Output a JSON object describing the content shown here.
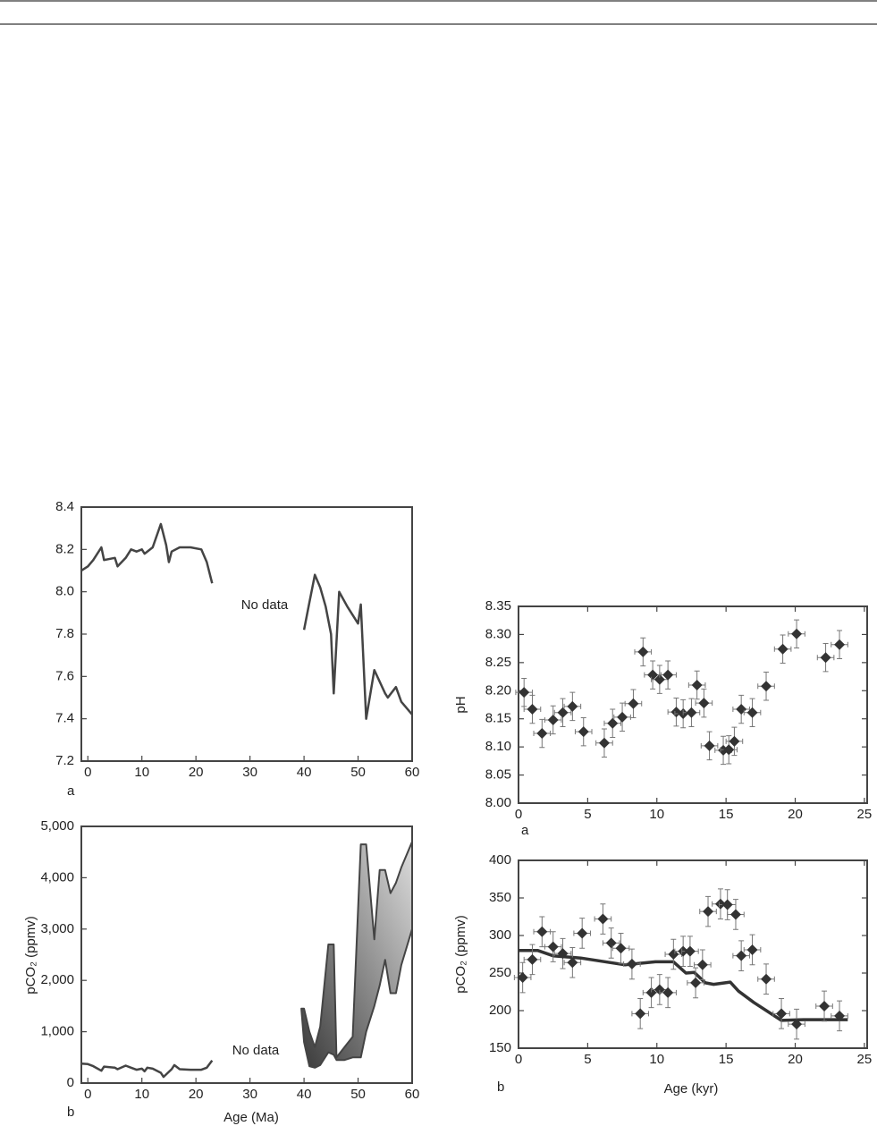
{
  "chart_data": [
    {
      "type": "line",
      "color": "#444444",
      "ylim": [
        7.2,
        8.4
      ],
      "yticks": [
        7.2,
        7.4,
        7.6,
        7.8,
        {
          "value": 8,
          "label": "8.0"
        },
        8.2,
        8.4
      ],
      "xlim": [
        -1.2,
        60
      ],
      "xticks": [
        0,
        10,
        20,
        30,
        40,
        50,
        60
      ],
      "annotation": "No data",
      "panel_label": "a",
      "series": [
        {
          "x": [
            -1.2,
            0,
            1,
            2.5,
            3,
            5,
            5.5,
            7,
            8,
            9,
            10,
            10.5,
            11,
            12,
            13.5,
            14.5,
            15,
            15.5,
            17,
            19,
            21,
            22,
            23,
            31,
            40,
            41,
            42,
            43,
            44,
            45,
            45.5,
            46.5,
            48,
            50,
            50.5,
            51.5,
            53,
            55,
            55.5,
            57,
            58,
            60
          ],
          "values": [
            8.1,
            8.12,
            8.15,
            8.21,
            8.15,
            8.16,
            8.12,
            8.16,
            8.2,
            8.19,
            8.2,
            8.18,
            8.19,
            8.21,
            8.32,
            8.22,
            8.14,
            8.19,
            8.21,
            8.21,
            8.2,
            8.14,
            8.04,
            null,
            7.82,
            7.95,
            8.08,
            8.02,
            7.93,
            7.8,
            7.52,
            8.0,
            7.93,
            7.85,
            7.94,
            7.4,
            7.63,
            7.52,
            7.5,
            7.55,
            7.48,
            7.42
          ]
        }
      ]
    },
    {
      "type": "line",
      "color": "#444444",
      "ylim": [
        0,
        5000
      ],
      "yticks": [
        0,
        {
          "value": 1000,
          "label": "1,000"
        },
        {
          "value": 2000,
          "label": "2,000"
        },
        {
          "value": 3000,
          "label": "3,000"
        },
        {
          "value": 4000,
          "label": "4,000"
        },
        {
          "value": 5000,
          "label": "5,000"
        }
      ],
      "xlim": [
        -1.2,
        60
      ],
      "xticks": [
        0,
        10,
        20,
        30,
        40,
        50,
        60
      ],
      "xlabel": "Age (Ma)",
      "ylabel": "pCO₂ (ppmv)",
      "annotation": "No data",
      "panel_label": "b",
      "series": [
        {
          "x": [
            -1.2,
            0,
            1,
            2.5,
            3,
            5,
            5.5,
            7,
            8,
            9,
            10,
            10.5,
            11,
            12,
            13.5,
            14,
            15.5,
            16,
            17,
            19,
            21,
            22,
            23
          ],
          "values": [
            380,
            370,
            330,
            240,
            320,
            300,
            270,
            340,
            300,
            260,
            280,
            230,
            300,
            280,
            200,
            120,
            270,
            350,
            270,
            260,
            260,
            300,
            440
          ]
        }
      ],
      "bands": [
        {
          "x": [
            39.5,
            40,
            41,
            42,
            43,
            44.5,
            45.5,
            46,
            47.5,
            49,
            50.5,
            51.5,
            53,
            54,
            55,
            56,
            57,
            58,
            60
          ],
          "upper": [
            1450,
            1450,
            1000,
            700,
            1100,
            2700,
            2700,
            500,
            700,
            900,
            4650,
            4650,
            2800,
            4150,
            4150,
            3700,
            3900,
            4200,
            4700
          ],
          "lower": [
            1450,
            800,
            330,
            300,
            350,
            600,
            550,
            450,
            450,
            500,
            500,
            1000,
            1500,
            1900,
            2400,
            1750,
            1750,
            2300,
            3000
          ]
        }
      ]
    },
    {
      "type": "scatter",
      "color": "#333333",
      "ylim": [
        8.0,
        8.35
      ],
      "yticks": [
        {
          "value": 8,
          "label": "8.00"
        },
        8.05,
        {
          "value": 8.1,
          "label": "8.10"
        },
        8.15,
        {
          "value": 8.2,
          "label": "8.20"
        },
        8.25,
        {
          "value": 8.3,
          "label": "8.30"
        },
        8.35
      ],
      "xlim": [
        0,
        25.2
      ],
      "xticks": [
        0,
        5,
        10,
        15,
        20,
        25
      ],
      "ylabel": "pH",
      "panel_label": "a",
      "xerr": 0.6,
      "yerr": 0.025,
      "x": [
        0.4,
        1.0,
        1.7,
        2.5,
        3.2,
        3.9,
        4.7,
        6.2,
        6.8,
        7.5,
        8.3,
        9.0,
        9.7,
        10.2,
        10.8,
        11.4,
        11.9,
        12.5,
        12.9,
        13.4,
        13.8,
        14.8,
        15.2,
        15.6,
        16.1,
        16.9,
        17.9,
        19.1,
        20.1,
        22.2,
        23.2
      ],
      "y": [
        8.197,
        8.167,
        8.124,
        8.148,
        8.161,
        8.172,
        8.127,
        8.107,
        8.142,
        8.153,
        8.177,
        8.269,
        8.228,
        8.22,
        8.228,
        8.162,
        8.159,
        8.161,
        8.21,
        8.178,
        8.102,
        8.094,
        8.095,
        8.11,
        8.167,
        8.161,
        8.208,
        8.274,
        8.301,
        8.259,
        8.282
      ]
    },
    {
      "type": "scatter",
      "color": "#333333",
      "ylim": [
        150,
        400
      ],
      "yticks": [
        150,
        200,
        250,
        300,
        350,
        400
      ],
      "xlim": [
        0,
        25.2
      ],
      "xticks": [
        0,
        5,
        10,
        15,
        20,
        25
      ],
      "xlabel": "Age (kyr)",
      "ylabel": "pCO₂ (ppmv)",
      "panel_label": "b",
      "xerr": 0.6,
      "yerr": 20,
      "x": [
        0.3,
        1.0,
        1.7,
        2.5,
        3.2,
        3.9,
        4.6,
        6.1,
        6.7,
        7.4,
        8.2,
        8.8,
        9.6,
        10.2,
        10.8,
        11.2,
        11.9,
        12.4,
        12.8,
        13.3,
        13.7,
        14.6,
        15.1,
        15.7,
        16.1,
        16.9,
        17.9,
        19.0,
        20.1,
        22.1,
        23.2
      ],
      "y": [
        244,
        268,
        305,
        285,
        276,
        264,
        303,
        322,
        290,
        283,
        262,
        196,
        224,
        228,
        224,
        275,
        279,
        279,
        237,
        261,
        332,
        342,
        341,
        328,
        273,
        281,
        242,
        196,
        182,
        206,
        193
      ],
      "line": {
        "x": [
          0,
          1.4,
          2.5,
          4.5,
          7.7,
          9.9,
          11.2,
          12.1,
          12.7,
          13.5,
          14.1,
          15.3,
          15.9,
          17.0,
          19.0,
          20.6,
          23.8
        ],
        "values": [
          280,
          280,
          273,
          270,
          261,
          265,
          265,
          250,
          251,
          237,
          235,
          238,
          226,
          211,
          187,
          188,
          188
        ]
      }
    }
  ]
}
